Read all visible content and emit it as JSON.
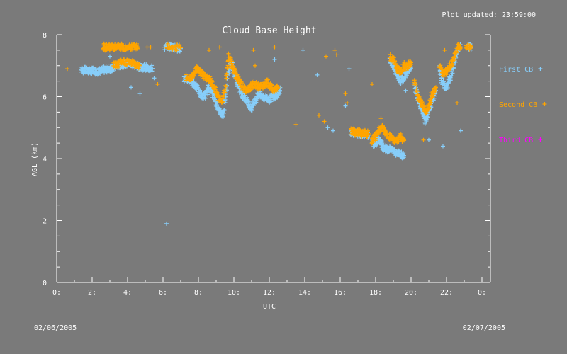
{
  "page": {
    "plot_updated": "Plot updated: 23:59:00",
    "date_left": "02/06/2005",
    "date_right": "02/07/2005"
  },
  "colors": {
    "background": "#7a7a7a",
    "first_cb": "#87cefa",
    "second_cb": "#ffa500",
    "third_cb": "#ff00ff",
    "axes": "#ffffff"
  },
  "chart_data": {
    "type": "scatter",
    "title": "Cloud Base Height",
    "xlabel": "UTC",
    "ylabel": "AGL (km)",
    "xlim": [
      0,
      24
    ],
    "ylim": [
      0,
      8
    ],
    "x_ticks": [
      0,
      2,
      4,
      6,
      8,
      10,
      12,
      14,
      16,
      18,
      20,
      22,
      24
    ],
    "x_tick_labels": [
      "0:",
      "2:",
      "4:",
      "6:",
      "8:",
      "10:",
      "12:",
      "14:",
      "16:",
      "18:",
      "20:",
      "22:",
      "0:"
    ],
    "y_ticks": [
      0,
      2,
      4,
      6,
      8
    ],
    "y_tick_labels": [
      "0",
      "2",
      "4",
      "6",
      "8"
    ],
    "legend_position": "right",
    "grid": false,
    "marker": "+",
    "series": [
      {
        "name": "First CB",
        "color": "#87cefa",
        "segments": [
          [
            [
              1.4,
              6.85
            ],
            [
              1.6,
              6.85
            ],
            [
              1.8,
              6.84
            ],
            [
              2.0,
              6.83
            ],
            [
              2.2,
              6.82
            ],
            [
              2.4,
              6.82
            ],
            [
              2.6,
              6.85
            ],
            [
              2.8,
              6.88
            ],
            [
              3.0,
              6.9
            ],
            [
              3.2,
              6.95
            ],
            [
              3.4,
              7.0
            ],
            [
              3.6,
              7.02
            ],
            [
              3.8,
              7.05
            ],
            [
              4.0,
              7.06
            ],
            [
              4.2,
              7.05
            ],
            [
              4.4,
              7.02
            ],
            [
              4.6,
              6.98
            ],
            [
              4.8,
              6.95
            ],
            [
              5.0,
              6.95
            ],
            [
              5.2,
              6.92
            ],
            [
              5.4,
              6.9
            ]
          ],
          [
            [
              6.1,
              7.6
            ],
            [
              6.4,
              7.6
            ],
            [
              6.7,
              7.58
            ],
            [
              7.0,
              7.55
            ]
          ],
          [
            [
              7.2,
              6.55
            ],
            [
              7.4,
              6.55
            ],
            [
              7.6,
              6.5
            ],
            [
              7.8,
              6.4
            ],
            [
              8.0,
              6.2
            ],
            [
              8.2,
              6.0
            ],
            [
              8.4,
              6.05
            ],
            [
              8.6,
              6.3
            ],
            [
              8.8,
              6.1
            ],
            [
              9.0,
              5.8
            ],
            [
              9.2,
              5.5
            ],
            [
              9.4,
              5.4
            ],
            [
              9.6,
              6.4
            ],
            [
              9.8,
              7.2
            ],
            [
              10.0,
              6.8
            ],
            [
              10.2,
              6.4
            ],
            [
              10.4,
              6.1
            ],
            [
              10.6,
              6.0
            ],
            [
              10.8,
              5.8
            ],
            [
              11.0,
              5.6
            ],
            [
              11.2,
              5.9
            ],
            [
              11.4,
              6.1
            ],
            [
              11.6,
              6.0
            ],
            [
              11.8,
              5.95
            ],
            [
              12.0,
              5.9
            ],
            [
              12.2,
              6.0
            ],
            [
              12.4,
              6.05
            ],
            [
              12.6,
              6.2
            ]
          ],
          [
            [
              16.6,
              4.85
            ],
            [
              16.8,
              4.85
            ],
            [
              17.0,
              4.8
            ],
            [
              17.2,
              4.8
            ],
            [
              17.4,
              4.78
            ],
            [
              17.6,
              4.76
            ]
          ],
          [
            [
              17.8,
              4.5
            ],
            [
              18.0,
              4.5
            ],
            [
              18.2,
              4.6
            ],
            [
              18.4,
              4.4
            ],
            [
              18.6,
              4.3
            ],
            [
              18.8,
              4.3
            ],
            [
              19.0,
              4.25
            ],
            [
              19.2,
              4.2
            ],
            [
              19.4,
              4.15
            ],
            [
              19.6,
              4.1
            ]
          ],
          [
            [
              18.8,
              7.2
            ],
            [
              19.0,
              7.0
            ],
            [
              19.2,
              6.7
            ],
            [
              19.4,
              6.5
            ],
            [
              19.6,
              6.6
            ],
            [
              19.8,
              6.9
            ],
            [
              20.0,
              6.9
            ]
          ],
          [
            [
              20.2,
              6.4
            ],
            [
              20.4,
              5.9
            ],
            [
              20.6,
              5.6
            ],
            [
              20.8,
              5.2
            ],
            [
              21.0,
              5.5
            ],
            [
              21.2,
              5.9
            ],
            [
              21.4,
              6.2
            ]
          ],
          [
            [
              21.6,
              6.9
            ],
            [
              21.8,
              6.4
            ],
            [
              22.0,
              6.3
            ],
            [
              22.2,
              6.6
            ],
            [
              22.4,
              6.95
            ],
            [
              22.6,
              7.5
            ],
            [
              22.8,
              7.6
            ]
          ],
          [
            [
              23.2,
              7.6
            ],
            [
              23.4,
              7.6
            ]
          ]
        ],
        "points": [
          [
            3.0,
            7.3
          ],
          [
            4.2,
            6.3
          ],
          [
            4.7,
            6.1
          ],
          [
            5.5,
            6.6
          ],
          [
            6.2,
            1.9
          ],
          [
            12.3,
            7.2
          ],
          [
            13.9,
            7.5
          ],
          [
            14.7,
            6.7
          ],
          [
            15.3,
            5.0
          ],
          [
            15.6,
            4.9
          ],
          [
            16.3,
            5.7
          ],
          [
            16.5,
            6.9
          ],
          [
            21.8,
            4.4
          ],
          [
            22.8,
            4.9
          ],
          [
            19.7,
            6.2
          ],
          [
            21.0,
            4.6
          ]
        ]
      },
      {
        "name": "Second CB",
        "color": "#ffa500",
        "segments": [
          [
            [
              2.6,
              7.6
            ],
            [
              2.8,
              7.6
            ],
            [
              3.0,
              7.6
            ],
            [
              3.2,
              7.6
            ],
            [
              3.4,
              7.6
            ],
            [
              3.6,
              7.6
            ],
            [
              3.8,
              7.6
            ],
            [
              4.0,
              7.6
            ],
            [
              4.2,
              7.6
            ],
            [
              4.4,
              7.6
            ],
            [
              4.6,
              7.6
            ]
          ],
          [
            [
              3.2,
              7.0
            ],
            [
              3.5,
              7.06
            ],
            [
              3.8,
              7.12
            ],
            [
              4.1,
              7.12
            ],
            [
              4.4,
              7.05
            ],
            [
              4.7,
              7.0
            ]
          ],
          [
            [
              6.2,
              7.6
            ],
            [
              6.6,
              7.6
            ],
            [
              7.0,
              7.58
            ]
          ],
          [
            [
              7.3,
              6.6
            ],
            [
              7.5,
              6.6
            ],
            [
              7.7,
              6.7
            ],
            [
              7.9,
              6.9
            ],
            [
              8.1,
              6.8
            ],
            [
              8.3,
              6.7
            ],
            [
              8.5,
              6.6
            ],
            [
              8.7,
              6.5
            ],
            [
              8.9,
              6.3
            ],
            [
              9.1,
              6.0
            ],
            [
              9.3,
              5.8
            ],
            [
              9.5,
              6.2
            ],
            [
              9.7,
              7.3
            ],
            [
              9.9,
              7.0
            ],
            [
              10.1,
              6.7
            ],
            [
              10.3,
              6.5
            ],
            [
              10.5,
              6.3
            ],
            [
              10.7,
              6.2
            ],
            [
              10.9,
              6.3
            ],
            [
              11.1,
              6.4
            ],
            [
              11.3,
              6.35
            ],
            [
              11.5,
              6.3
            ],
            [
              11.7,
              6.4
            ],
            [
              11.9,
              6.45
            ],
            [
              12.1,
              6.3
            ],
            [
              12.3,
              6.2
            ],
            [
              12.5,
              6.3
            ]
          ],
          [
            [
              16.6,
              4.9
            ],
            [
              16.8,
              4.85
            ],
            [
              17.0,
              4.85
            ],
            [
              17.2,
              4.82
            ],
            [
              17.4,
              4.82
            ],
            [
              17.6,
              4.8
            ]
          ],
          [
            [
              17.8,
              4.6
            ],
            [
              18.0,
              4.7
            ],
            [
              18.2,
              4.9
            ],
            [
              18.4,
              5.0
            ],
            [
              18.6,
              4.8
            ],
            [
              18.8,
              4.7
            ],
            [
              19.0,
              4.6
            ],
            [
              19.2,
              4.6
            ],
            [
              19.4,
              4.7
            ],
            [
              19.6,
              4.6
            ]
          ],
          [
            [
              18.8,
              7.3
            ],
            [
              19.0,
              7.2
            ],
            [
              19.2,
              6.9
            ],
            [
              19.4,
              6.8
            ],
            [
              19.6,
              7.0
            ],
            [
              19.8,
              7.0
            ],
            [
              20.0,
              7.1
            ]
          ],
          [
            [
              20.2,
              6.5
            ],
            [
              20.4,
              6.0
            ],
            [
              20.6,
              5.8
            ],
            [
              20.8,
              5.5
            ],
            [
              21.0,
              5.7
            ],
            [
              21.2,
              6.1
            ],
            [
              21.4,
              6.3
            ]
          ],
          [
            [
              21.6,
              7.0
            ],
            [
              21.8,
              6.7
            ],
            [
              22.0,
              6.8
            ],
            [
              22.2,
              7.0
            ],
            [
              22.4,
              7.2
            ],
            [
              22.6,
              7.6
            ],
            [
              22.8,
              7.6
            ]
          ],
          [
            [
              23.1,
              7.62
            ],
            [
              23.4,
              7.62
            ]
          ]
        ],
        "points": [
          [
            0.6,
            6.9
          ],
          [
            5.1,
            7.6
          ],
          [
            5.3,
            7.6
          ],
          [
            5.7,
            6.4
          ],
          [
            8.6,
            7.5
          ],
          [
            9.2,
            7.6
          ],
          [
            11.1,
            7.5
          ],
          [
            11.2,
            7.0
          ],
          [
            12.3,
            7.6
          ],
          [
            13.5,
            5.1
          ],
          [
            14.8,
            5.4
          ],
          [
            15.1,
            5.2
          ],
          [
            15.2,
            7.3
          ],
          [
            15.7,
            7.5
          ],
          [
            15.8,
            7.35
          ],
          [
            16.3,
            6.1
          ],
          [
            16.4,
            5.8
          ],
          [
            17.8,
            6.4
          ],
          [
            18.3,
            5.3
          ],
          [
            20.7,
            4.6
          ],
          [
            21.9,
            7.5
          ],
          [
            22.6,
            5.8
          ]
        ]
      },
      {
        "name": "Third CB",
        "color": "#ff00ff",
        "segments": [],
        "points": []
      }
    ]
  }
}
